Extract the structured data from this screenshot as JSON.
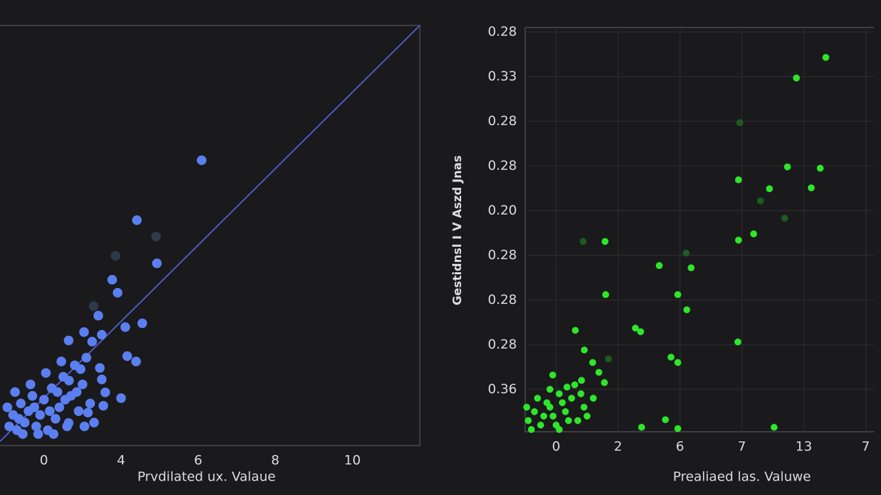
{
  "chart_data": [
    {
      "type": "scatter",
      "xlabel": "Prvdilated ux. Valaue",
      "xlim": [
        -1.14,
        9.75
      ],
      "ylim": [
        0,
        11
      ],
      "xticks": [
        0,
        {
          "value": 2,
          "label": "4"
        },
        {
          "value": 4,
          "label": "6"
        },
        {
          "value": 6,
          "label": "8"
        },
        {
          "value": 8,
          "label": "10"
        }
      ],
      "series": [
        {
          "color": "#5b7ff0",
          "x": [
            4.09,
            2.41,
            2.93,
            1.77,
            1.91,
            1.41,
            2.11,
            2.55,
            1.04,
            0.64,
            1.5,
            2.16,
            2.39,
            1.25,
            2.0,
            1.54,
            1.14,
            0.64,
            1.59,
            1.5,
            1.45,
            -0.9,
            -0.8,
            -0.7,
            -0.6,
            -0.5,
            -0.4,
            -0.3,
            -0.2,
            -0.1,
            0,
            0.1,
            0.2,
            0.3,
            0.4,
            0.5,
            0.6,
            0.7,
            0.8,
            0.9,
            1.0,
            1.1,
            1.2,
            1.3,
            -0.95,
            -0.75,
            -0.55,
            -0.35,
            -0.15,
            0.05,
            0.25,
            0.45,
            0.65,
            0.85,
            1.05,
            -0.65,
            -0.25,
            0.15,
            0.55,
            0.95,
            0.35
          ],
          "values": [
            7.47,
            5.9,
            4.77,
            4.34,
            4.0,
            3.4,
            3.1,
            3.2,
            2.97,
            2.75,
            2.9,
            2.34,
            2.2,
            2.72,
            1.24,
            1.04,
            0.86,
            0.59,
            1.39,
            1.73,
            2.03,
            0.5,
            0.8,
            0.4,
            1.1,
            0.6,
            0.9,
            1.3,
            0.5,
            0.8,
            1.2,
            0.4,
            1.5,
            0.7,
            1.0,
            1.8,
            0.5,
            1.3,
            2.1,
            0.9,
            1.6,
            2.3,
            1.1,
            0.6,
            1.0,
            1.4,
            0.3,
            1.6,
            0.3,
            1.9,
            0.3,
            2.2,
            1.7,
            1.4,
            0.5,
            0.7,
            1.0,
            0.9,
            1.2,
            2.0,
            1.4
          ]
        },
        {
          "color": "#2f3a48",
          "x": [
            2.91,
            1.86,
            1.29
          ],
          "values": [
            5.47,
            4.97,
            3.65
          ]
        }
      ]
    },
    {
      "type": "scatter",
      "xlabel": "Prealiaed las. Valuwe",
      "ylabel": "Gestidnsl I V Aszd Jnas",
      "xlim": [
        -1,
        10.27
      ],
      "ylim": [
        -0.95,
        8.1
      ],
      "xticks": [
        0,
        2,
        {
          "value": 4,
          "label": "6"
        },
        {
          "value": 6,
          "label": "7"
        },
        {
          "value": 8,
          "label": "13"
        },
        {
          "value": 10,
          "label": "7"
        }
      ],
      "yticks": [
        {
          "value": 8,
          "label": "0.28"
        },
        {
          "value": 7,
          "label": "0.33"
        },
        {
          "value": 6,
          "label": "0.28"
        },
        {
          "value": 5,
          "label": "0.28"
        },
        {
          "value": 4,
          "label": "0.20"
        },
        {
          "value": 3,
          "label": "0.28"
        },
        {
          "value": 2,
          "label": "0.28"
        },
        {
          "value": 1,
          "label": "0.28"
        },
        {
          "value": 0,
          "label": "0.36"
        }
      ],
      "grid": true,
      "series": [
        {
          "color": "#2ee62a",
          "x": [
            8.71,
            7.76,
            7.47,
            8.53,
            5.89,
            6.89,
            8.24,
            6.38,
            5.89,
            1.58,
            4.36,
            3.33,
            1.6,
            3.93,
            4.22,
            0.62,
            2.56,
            2.73,
            5.87,
            0.91,
            3.71,
            3.93,
            1.18,
            -0.11,
            0.82,
            1.38,
            1.56,
            3.53,
            2.76,
            3.93,
            7.04,
            -0.9,
            -0.7,
            -0.5,
            -0.3,
            -0.1,
            0.1,
            0.3,
            0.5,
            0.7,
            0.9,
            -0.8,
            -0.6,
            -0.4,
            -0.2,
            0,
            0.2,
            0.4,
            0.6,
            0.8,
            -0.95,
            0.35,
            1.0,
            1.2,
            0.1,
            -0.2
          ],
          "values": [
            7.43,
            6.97,
            4.98,
            4.95,
            4.69,
            4.49,
            4.51,
            3.48,
            3.34,
            3.31,
            2.72,
            2.77,
            2.12,
            2.12,
            1.78,
            1.32,
            1.37,
            1.29,
            1.06,
            0.88,
            0.72,
            0.6,
            0.6,
            0.32,
            0.2,
            0.38,
            0.15,
            -0.68,
            -0.85,
            -0.88,
            -0.85,
            -0.7,
            -0.5,
            -0.8,
            -0.3,
            -0.6,
            -0.1,
            -0.5,
            -0.2,
            -0.7,
            -0.4,
            -0.9,
            -0.2,
            -0.6,
            0.0,
            -0.8,
            -0.3,
            -0.7,
            0.1,
            -0.1,
            -0.4,
            0.05,
            -0.6,
            -0.2,
            -0.9,
            -0.4
          ]
        },
        {
          "color": "#1f5a22",
          "x": [
            5.93,
            6.6,
            7.38,
            0.87,
            4.2,
            1.69
          ],
          "values": [
            5.97,
            4.22,
            3.83,
            3.31,
            3.05,
            0.68
          ]
        }
      ]
    }
  ]
}
